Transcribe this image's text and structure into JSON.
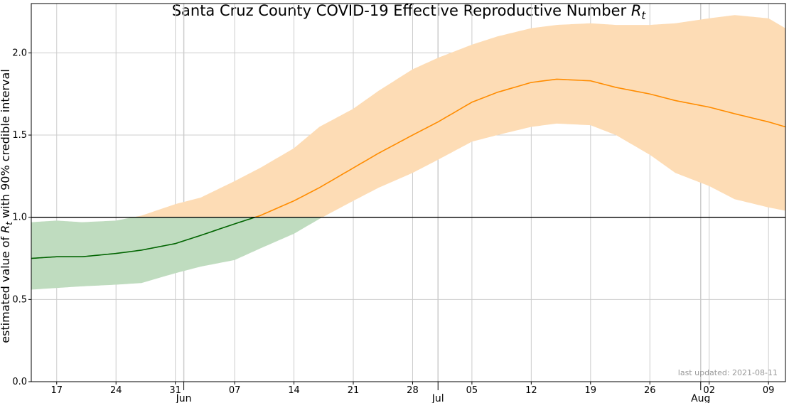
{
  "chart_data": {
    "type": "area",
    "title": "Santa Cruz County COVID-19 Effective Reproductive Number",
    "title_symbol": "R",
    "title_symbol_sub": "t",
    "ylabel_parts": [
      "estimated value of ",
      "R",
      "t",
      " with 90% credible interval"
    ],
    "ylim": [
      0,
      2.3
    ],
    "xlim": [
      "2021-05-14",
      "2021-08-11"
    ],
    "grid": true,
    "reference_line": 1.0,
    "yticks": [
      {
        "value": 0.0,
        "label": "0.0"
      },
      {
        "value": 0.5,
        "label": "0.5"
      },
      {
        "value": 1.0,
        "label": "1.0"
      },
      {
        "value": 1.5,
        "label": "1.5"
      },
      {
        "value": 2.0,
        "label": "2.0"
      }
    ],
    "xticks_minor": [
      {
        "date": "2021-05-17",
        "label": "17"
      },
      {
        "date": "2021-05-24",
        "label": "24"
      },
      {
        "date": "2021-05-31",
        "label": "31"
      },
      {
        "date": "2021-06-07",
        "label": "07"
      },
      {
        "date": "2021-06-14",
        "label": "14"
      },
      {
        "date": "2021-06-21",
        "label": "21"
      },
      {
        "date": "2021-06-28",
        "label": "28"
      },
      {
        "date": "2021-07-05",
        "label": "05"
      },
      {
        "date": "2021-07-12",
        "label": "12"
      },
      {
        "date": "2021-07-19",
        "label": "19"
      },
      {
        "date": "2021-07-26",
        "label": "26"
      },
      {
        "date": "2021-08-02",
        "label": "02"
      },
      {
        "date": "2021-08-09",
        "label": "09"
      }
    ],
    "xticks_major": [
      {
        "date": "2021-06-01",
        "label": "Jun"
      },
      {
        "date": "2021-07-01",
        "label": "Jul"
      },
      {
        "date": "2021-08-01",
        "label": "Aug"
      }
    ],
    "colors": {
      "below_line": "#006400",
      "below_band": "#bfdcbf",
      "above_line": "#ff8c00",
      "above_band": "#fddcb5",
      "grid": "#cccccc",
      "reference": "#000000"
    },
    "series": {
      "x": [
        "2021-05-14",
        "2021-05-17",
        "2021-05-20",
        "2021-05-24",
        "2021-05-27",
        "2021-05-31",
        "2021-06-03",
        "2021-06-07",
        "2021-06-10",
        "2021-06-14",
        "2021-06-17",
        "2021-06-21",
        "2021-06-24",
        "2021-06-28",
        "2021-07-01",
        "2021-07-05",
        "2021-07-08",
        "2021-07-12",
        "2021-07-15",
        "2021-07-19",
        "2021-07-22",
        "2021-07-26",
        "2021-07-29",
        "2021-08-02",
        "2021-08-05",
        "2021-08-09",
        "2021-08-11"
      ],
      "median": [
        0.75,
        0.76,
        0.76,
        0.78,
        0.8,
        0.84,
        0.89,
        0.96,
        1.01,
        1.1,
        1.18,
        1.3,
        1.39,
        1.5,
        1.58,
        1.7,
        1.76,
        1.82,
        1.84,
        1.83,
        1.79,
        1.75,
        1.71,
        1.67,
        1.63,
        1.58,
        1.55
      ],
      "lower": [
        0.56,
        0.57,
        0.58,
        0.59,
        0.6,
        0.66,
        0.7,
        0.74,
        0.81,
        0.9,
        0.99,
        1.1,
        1.18,
        1.27,
        1.35,
        1.46,
        1.5,
        1.55,
        1.57,
        1.56,
        1.5,
        1.38,
        1.27,
        1.19,
        1.11,
        1.06,
        1.04
      ],
      "upper": [
        0.97,
        0.98,
        0.97,
        0.98,
        1.01,
        1.08,
        1.12,
        1.22,
        1.3,
        1.42,
        1.55,
        1.66,
        1.77,
        1.9,
        1.97,
        2.05,
        2.1,
        2.15,
        2.17,
        2.18,
        2.17,
        2.17,
        2.18,
        2.21,
        2.23,
        2.21,
        2.15
      ]
    },
    "annotation": "last updated: 2021-08-11"
  }
}
